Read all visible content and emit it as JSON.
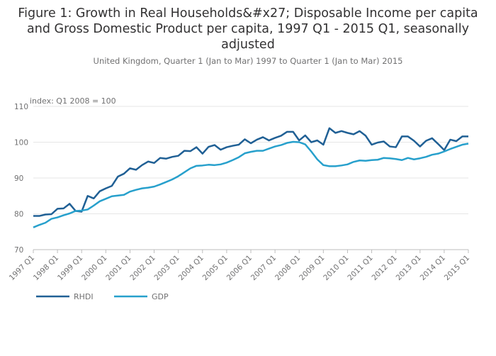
{
  "chart_data": {
    "type": "line",
    "title": "Figure 1: Growth in Real Households&#x27; Disposable Income per capita and Gross Domestic Product per capita, 1997 Q1 - 2015 Q1, seasonally adjusted",
    "subtitle": "United Kingdom, Quarter 1 (Jan to Mar) 1997 to Quarter 1 (Jan to Mar) 2015",
    "y_unit_label": "index: Q1 2008 = 100",
    "xlabel": "",
    "ylabel": "",
    "ylim": [
      70,
      110
    ],
    "yticks": [
      70,
      80,
      90,
      100,
      110
    ],
    "xtick_labels": [
      "1997 Q1",
      "1998 Q1",
      "1999 Q1",
      "2000 Q1",
      "2001 Q1",
      "2002 Q1",
      "2003 Q1",
      "2004 Q1",
      "2005 Q1",
      "2006 Q1",
      "2007 Q1",
      "2008 Q1",
      "2009 Q1",
      "2010 Q1",
      "2011 Q1",
      "2012 Q1",
      "2013 Q1",
      "2014 Q1",
      "2015 Q1"
    ],
    "grid": "horizontal",
    "legend_position": "bottom-left",
    "x": [
      "1997 Q1",
      "1997 Q2",
      "1997 Q3",
      "1997 Q4",
      "1998 Q1",
      "1998 Q2",
      "1998 Q3",
      "1998 Q4",
      "1999 Q1",
      "1999 Q2",
      "1999 Q3",
      "1999 Q4",
      "2000 Q1",
      "2000 Q2",
      "2000 Q3",
      "2000 Q4",
      "2001 Q1",
      "2001 Q2",
      "2001 Q3",
      "2001 Q4",
      "2002 Q1",
      "2002 Q2",
      "2002 Q3",
      "2002 Q4",
      "2003 Q1",
      "2003 Q2",
      "2003 Q3",
      "2003 Q4",
      "2004 Q1",
      "2004 Q2",
      "2004 Q3",
      "2004 Q4",
      "2005 Q1",
      "2005 Q2",
      "2005 Q3",
      "2005 Q4",
      "2006 Q1",
      "2006 Q2",
      "2006 Q3",
      "2006 Q4",
      "2007 Q1",
      "2007 Q2",
      "2007 Q3",
      "2007 Q4",
      "2008 Q1",
      "2008 Q2",
      "2008 Q3",
      "2008 Q4",
      "2009 Q1",
      "2009 Q2",
      "2009 Q3",
      "2009 Q4",
      "2010 Q1",
      "2010 Q2",
      "2010 Q3",
      "2010 Q4",
      "2011 Q1",
      "2011 Q2",
      "2011 Q3",
      "2011 Q4",
      "2012 Q1",
      "2012 Q2",
      "2012 Q3",
      "2012 Q4",
      "2013 Q1",
      "2013 Q2",
      "2013 Q3",
      "2013 Q4",
      "2014 Q1",
      "2014 Q2",
      "2014 Q3",
      "2014 Q4",
      "2015 Q1"
    ],
    "series": [
      {
        "name": "RHDI",
        "color": "#206095",
        "values": [
          79.4,
          79.4,
          79.8,
          79.9,
          81.4,
          81.5,
          82.8,
          80.8,
          80.6,
          85.0,
          84.3,
          86.3,
          87.1,
          87.8,
          90.4,
          91.2,
          92.7,
          92.3,
          93.6,
          94.6,
          94.2,
          95.6,
          95.4,
          95.9,
          96.2,
          97.6,
          97.5,
          98.6,
          96.8,
          98.7,
          99.2,
          97.9,
          98.6,
          99.0,
          99.3,
          100.8,
          99.7,
          100.7,
          101.4,
          100.5,
          101.2,
          101.8,
          102.9,
          102.9,
          100.5,
          101.9,
          100.0,
          100.5,
          99.3,
          103.9,
          102.6,
          103.1,
          102.6,
          102.2,
          103.1,
          101.8,
          99.3,
          99.9,
          100.2,
          98.8,
          98.6,
          101.6,
          101.6,
          100.4,
          98.8,
          100.4,
          101.1,
          99.5,
          97.8,
          100.7,
          100.3,
          101.6,
          101.6
        ]
      },
      {
        "name": "GDP",
        "color": "#27a0cc",
        "values": [
          76.2,
          76.9,
          77.5,
          78.6,
          79.0,
          79.6,
          80.1,
          80.8,
          80.9,
          81.2,
          82.3,
          83.5,
          84.2,
          84.9,
          85.1,
          85.3,
          86.2,
          86.7,
          87.1,
          87.3,
          87.6,
          88.2,
          88.9,
          89.6,
          90.5,
          91.6,
          92.7,
          93.4,
          93.5,
          93.7,
          93.6,
          93.8,
          94.3,
          95.0,
          95.8,
          96.9,
          97.3,
          97.6,
          97.6,
          98.2,
          98.8,
          99.2,
          99.8,
          100.1,
          100.0,
          99.4,
          97.4,
          95.2,
          93.6,
          93.3,
          93.3,
          93.5,
          93.8,
          94.5,
          94.9,
          94.8,
          95.0,
          95.1,
          95.6,
          95.5,
          95.3,
          95.0,
          95.6,
          95.2,
          95.5,
          95.9,
          96.5,
          96.8,
          97.4,
          98.1,
          98.7,
          99.3,
          99.6
        ]
      }
    ]
  }
}
